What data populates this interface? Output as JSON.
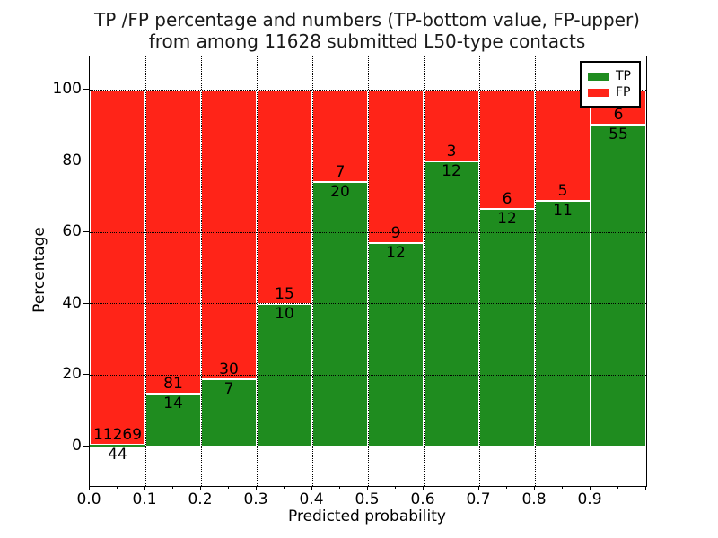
{
  "chart_data": {
    "type": "bar",
    "stacked": true,
    "normalized": "each bin stacked to 100%",
    "title": "TP /FP percentage and numbers (TP-bottom value, FP-upper)",
    "subtitle": "from among 11628 submitted L50-type contacts",
    "xlabel": "Predicted probability",
    "ylabel": "Percentage",
    "categories": [
      "0.0-0.1",
      "0.1-0.2",
      "0.2-0.3",
      "0.3-0.4",
      "0.4-0.5",
      "0.5-0.6",
      "0.6-0.7",
      "0.7-0.8",
      "0.8-0.9",
      "0.9-1.0"
    ],
    "series": [
      {
        "name": "TP",
        "color": "#1f8c1f",
        "values": [
          44,
          14,
          7,
          10,
          20,
          12,
          12,
          12,
          11,
          55
        ]
      },
      {
        "name": "FP",
        "color": "#ff2418",
        "values": [
          11269,
          81,
          30,
          15,
          7,
          9,
          3,
          6,
          5,
          6
        ]
      }
    ],
    "tp_percent_of_bin": [
      0.39,
      14.74,
      18.92,
      40.0,
      74.07,
      57.14,
      80.0,
      66.67,
      68.75,
      90.16
    ],
    "xticks": [
      "0.0",
      "0.1",
      "0.2",
      "0.3",
      "0.4",
      "0.5",
      "0.6",
      "0.7",
      "0.8",
      "0.9"
    ],
    "yticks": [
      0,
      20,
      40,
      60,
      80,
      100
    ],
    "xlim": [
      0.0,
      1.0
    ],
    "ylim": [
      -11,
      109.4
    ],
    "grid": "dotted black, both axes",
    "legend": {
      "position": "upper right",
      "entries": [
        "TP",
        "FP"
      ]
    }
  }
}
